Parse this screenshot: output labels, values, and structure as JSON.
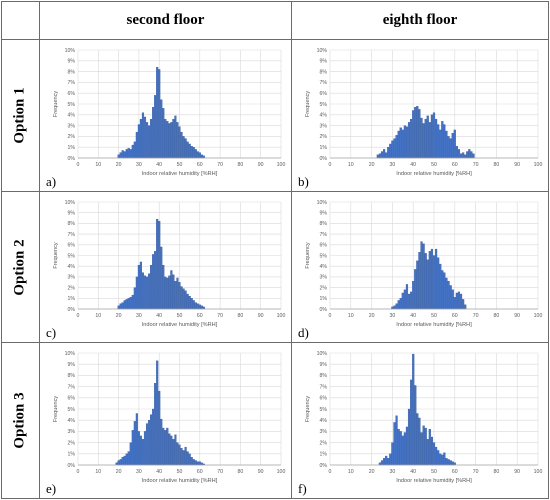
{
  "header": {
    "col1": "second floor",
    "col2": "eighth floor"
  },
  "rows": [
    "Option 1",
    "Option 2",
    "Option 3"
  ],
  "colors": {
    "bar": "#4472c4",
    "bar_edge": "#2f5597",
    "grid": "#d9d9d9",
    "border": "#6b6b6b"
  },
  "chart_data": [
    {
      "type": "bar",
      "panel": "a)",
      "xlabel": "Indoor relative humidity [%RH]",
      "ylabel": "Frequency",
      "xlim": [
        0,
        100
      ],
      "ylim": [
        0,
        10
      ],
      "xticks": [
        "0",
        "10",
        "20",
        "30",
        "40",
        "50",
        "60",
        "70",
        "80",
        "90",
        "100"
      ],
      "yticks": [
        "0%",
        "1%",
        "2%",
        "3%",
        "4%",
        "5%",
        "6%",
        "7%",
        "8%",
        "9%",
        "10%"
      ],
      "grid": true,
      "x": [
        20,
        21,
        22,
        23,
        24,
        25,
        26,
        27,
        28,
        29,
        30,
        31,
        32,
        33,
        34,
        35,
        36,
        37,
        38,
        39,
        40,
        41,
        42,
        43,
        44,
        45,
        46,
        47,
        48,
        49,
        50,
        51,
        52,
        53,
        54,
        55,
        56,
        57,
        58,
        59,
        60,
        61,
        62
      ],
      "values": [
        0.3,
        0.5,
        0.7,
        0.6,
        0.8,
        0.9,
        0.8,
        1.2,
        1.5,
        2.4,
        3.1,
        3.6,
        4.2,
        3.8,
        3.3,
        3.0,
        3.6,
        4.7,
        5.8,
        8.4,
        8.2,
        5.4,
        4.6,
        3.6,
        3.4,
        3.2,
        3.3,
        3.6,
        3.9,
        3.3,
        2.9,
        2.4,
        2.0,
        1.8,
        1.5,
        1.3,
        1.1,
        1.0,
        0.8,
        0.6,
        0.5,
        0.3,
        0.2
      ]
    },
    {
      "type": "bar",
      "panel": "b)",
      "xlabel": "Indoor relative humidity [%RH]",
      "ylabel": "Frequency",
      "xlim": [
        0,
        100
      ],
      "ylim": [
        0,
        10
      ],
      "xticks": [
        "0",
        "10",
        "20",
        "30",
        "40",
        "50",
        "60",
        "70",
        "80",
        "90",
        "100"
      ],
      "yticks": [
        "0%",
        "1%",
        "2%",
        "3%",
        "4%",
        "5%",
        "6%",
        "7%",
        "8%",
        "9%",
        "10%"
      ],
      "grid": true,
      "x": [
        23,
        24,
        25,
        26,
        27,
        28,
        29,
        30,
        31,
        32,
        33,
        34,
        35,
        36,
        37,
        38,
        39,
        40,
        41,
        42,
        43,
        44,
        45,
        46,
        47,
        48,
        49,
        50,
        51,
        52,
        53,
        54,
        55,
        56,
        57,
        58,
        59,
        60,
        61,
        62,
        63,
        64,
        65,
        66,
        67,
        68,
        69
      ],
      "values": [
        0.3,
        0.4,
        0.6,
        0.8,
        0.5,
        1.0,
        1.3,
        1.6,
        1.8,
        2.1,
        2.5,
        2.8,
        2.6,
        3.0,
        2.9,
        3.3,
        3.6,
        4.4,
        4.7,
        4.8,
        4.5,
        3.7,
        3.2,
        3.6,
        3.9,
        3.3,
        4.0,
        4.2,
        3.6,
        3.1,
        2.6,
        3.4,
        3.1,
        2.5,
        2.0,
        1.8,
        2.3,
        2.6,
        1.1,
        0.8,
        0.4,
        0.5,
        0.3,
        0.6,
        0.8,
        0.6,
        0.4
      ]
    },
    {
      "type": "bar",
      "panel": "c)",
      "xlabel": "Indoor relative humidity [%RH]",
      "ylabel": "Frequency",
      "xlim": [
        0,
        100
      ],
      "ylim": [
        0,
        10
      ],
      "xticks": [
        "0",
        "10",
        "20",
        "30",
        "40",
        "50",
        "60",
        "70",
        "80",
        "90",
        "100"
      ],
      "yticks": [
        "0%",
        "1%",
        "2%",
        "3%",
        "4%",
        "5%",
        "6%",
        "7%",
        "8%",
        "9%",
        "10%"
      ],
      "grid": true,
      "x": [
        20,
        21,
        22,
        23,
        24,
        25,
        26,
        27,
        28,
        29,
        30,
        31,
        32,
        33,
        34,
        35,
        36,
        37,
        38,
        39,
        40,
        41,
        42,
        43,
        44,
        45,
        46,
        47,
        48,
        49,
        50,
        51,
        52,
        53,
        54,
        55,
        56,
        57,
        58,
        59,
        60,
        61,
        62
      ],
      "values": [
        0.3,
        0.5,
        0.6,
        0.8,
        0.9,
        1.0,
        1.1,
        1.3,
        2.0,
        3.0,
        4.1,
        4.4,
        3.4,
        3.1,
        3.0,
        3.3,
        4.1,
        5.1,
        5.4,
        8.4,
        8.2,
        5.8,
        4.1,
        3.0,
        2.9,
        3.1,
        3.6,
        3.2,
        2.6,
        2.9,
        2.5,
        2.1,
        1.9,
        1.7,
        1.4,
        1.2,
        1.0,
        0.8,
        0.6,
        0.5,
        0.4,
        0.3,
        0.2
      ]
    },
    {
      "type": "bar",
      "panel": "d)",
      "xlabel": "Indoor relative humidity [%RH]",
      "ylabel": "Frequency",
      "xlim": [
        0,
        100
      ],
      "ylim": [
        0,
        10
      ],
      "xticks": [
        "0",
        "10",
        "20",
        "30",
        "40",
        "50",
        "60",
        "70",
        "80",
        "90",
        "100"
      ],
      "yticks": [
        "0%",
        "1%",
        "2%",
        "3%",
        "4%",
        "5%",
        "6%",
        "7%",
        "8%",
        "9%",
        "10%"
      ],
      "grid": true,
      "x": [
        30,
        31,
        32,
        33,
        34,
        35,
        36,
        37,
        38,
        39,
        40,
        41,
        42,
        43,
        44,
        45,
        46,
        47,
        48,
        49,
        50,
        51,
        52,
        53,
        54,
        55,
        56,
        57,
        58,
        59,
        60,
        61,
        62,
        63,
        64,
        65
      ],
      "values": [
        0.2,
        0.3,
        0.5,
        0.8,
        1.0,
        1.5,
        1.8,
        2.3,
        1.4,
        1.6,
        2.6,
        3.7,
        4.5,
        5.3,
        6.3,
        6.1,
        5.2,
        4.6,
        5.4,
        5.6,
        5.0,
        5.6,
        4.8,
        4.2,
        3.6,
        3.4,
        2.9,
        2.6,
        2.2,
        1.8,
        1.1,
        1.5,
        1.6,
        1.4,
        0.9,
        0.4
      ]
    },
    {
      "type": "bar",
      "panel": "e)",
      "xlabel": "Indoor relative humidity [%RH]",
      "ylabel": "Frequency",
      "xlim": [
        0,
        100
      ],
      "ylim": [
        0,
        10
      ],
      "xticks": [
        "0",
        "10",
        "20",
        "30",
        "40",
        "50",
        "60",
        "70",
        "80",
        "90",
        "100"
      ],
      "yticks": [
        "0%",
        "1%",
        "2%",
        "3%",
        "4%",
        "5%",
        "6%",
        "7%",
        "8%",
        "9%",
        "10%"
      ],
      "grid": true,
      "x": [
        19,
        20,
        21,
        22,
        23,
        24,
        25,
        26,
        27,
        28,
        29,
        30,
        31,
        32,
        33,
        34,
        35,
        36,
        37,
        38,
        39,
        40,
        41,
        42,
        43,
        44,
        45,
        46,
        47,
        48,
        49,
        50,
        51,
        52,
        53,
        54,
        55,
        56,
        57,
        58,
        59,
        60,
        61,
        62
      ],
      "values": [
        0.2,
        0.4,
        0.5,
        0.7,
        0.8,
        1.0,
        1.2,
        2.0,
        3.1,
        3.9,
        4.6,
        3.0,
        2.6,
        2.3,
        3.0,
        3.7,
        4.0,
        4.5,
        5.0,
        7.3,
        9.3,
        6.6,
        4.1,
        3.3,
        3.1,
        3.3,
        2.8,
        2.6,
        2.3,
        2.7,
        2.0,
        1.8,
        1.5,
        1.3,
        1.6,
        1.2,
        1.0,
        0.7,
        0.5,
        0.4,
        0.3,
        0.3,
        0.2,
        0.1
      ]
    },
    {
      "type": "bar",
      "panel": "f)",
      "xlabel": "Indoor relative humidity [%RH]",
      "ylabel": "Frequency",
      "xlim": [
        0,
        100
      ],
      "ylim": [
        0,
        10
      ],
      "xticks": [
        "0",
        "10",
        "20",
        "30",
        "40",
        "50",
        "60",
        "70",
        "80",
        "90",
        "100"
      ],
      "yticks": [
        "0%",
        "1%",
        "2%",
        "3%",
        "4%",
        "5%",
        "6%",
        "7%",
        "8%",
        "9%",
        "10%"
      ],
      "grid": true,
      "x": [
        24,
        25,
        26,
        27,
        28,
        29,
        30,
        31,
        32,
        33,
        34,
        35,
        36,
        37,
        38,
        39,
        40,
        41,
        42,
        43,
        44,
        45,
        46,
        47,
        48,
        49,
        50,
        51,
        52,
        53,
        54,
        55,
        56,
        57,
        58,
        59,
        60
      ],
      "values": [
        0.2,
        0.4,
        0.6,
        0.8,
        0.6,
        1.0,
        2.0,
        3.8,
        4.4,
        3.2,
        3.0,
        2.6,
        2.9,
        3.4,
        5.0,
        7.6,
        9.9,
        7.1,
        4.6,
        4.2,
        2.9,
        3.5,
        3.3,
        2.3,
        3.2,
        2.5,
        2.0,
        1.6,
        1.3,
        1.0,
        0.9,
        1.1,
        0.6,
        0.5,
        0.4,
        0.3,
        0.2
      ]
    }
  ]
}
